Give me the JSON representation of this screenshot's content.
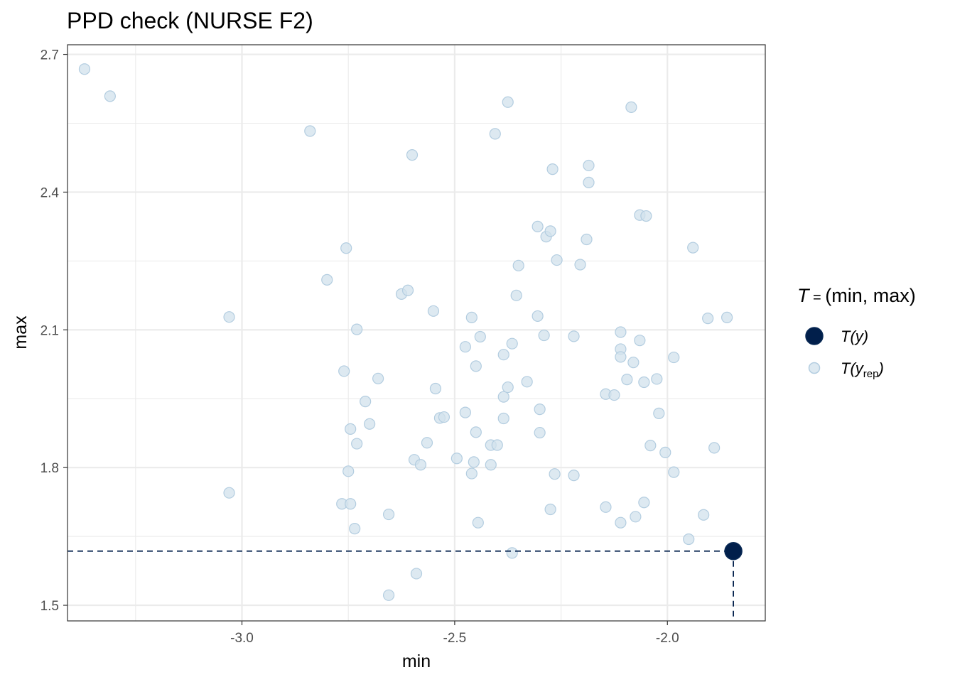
{
  "chart_data": {
    "type": "scatter",
    "title": "PPD check (NURSE F2)",
    "xlabel": "min",
    "ylabel": "max",
    "xlim": [
      -3.41,
      -1.77
    ],
    "ylim": [
      1.466,
      2.721
    ],
    "x_ticks": [
      -3.0,
      -2.5,
      -2.0
    ],
    "x_tick_labels": [
      "-3.0",
      "-2.5",
      "-2.0"
    ],
    "y_ticks": [
      1.5,
      1.8,
      2.1,
      2.4,
      2.7
    ],
    "y_tick_labels": [
      "1.5",
      "1.8",
      "2.1",
      "2.4",
      "2.7"
    ],
    "grid": true,
    "legend": {
      "position": "right",
      "title_prefix": "T",
      "title_eq": " = ",
      "title_expr": "(min, max)",
      "items": [
        {
          "label_main": "T(y)",
          "label_sub": "",
          "label_end": "",
          "color": "#011f4b",
          "marker": "large-filled"
        },
        {
          "label_main": "T(y",
          "label_sub": "rep",
          "label_end": ")",
          "color": "#c8d7e5",
          "marker": "small-translucent"
        }
      ]
    },
    "observed": {
      "x": -1.845,
      "y": 1.618,
      "color": "#011f4b"
    },
    "replicated_color": "#d1e1ec",
    "replicated_stroke": "#b3cde0",
    "replicated": [
      [
        -3.37,
        2.668
      ],
      [
        -3.31,
        2.609
      ],
      [
        -3.03,
        2.128
      ],
      [
        -3.03,
        1.745
      ],
      [
        -2.84,
        2.533
      ],
      [
        -2.8,
        2.209
      ],
      [
        -2.755,
        2.278
      ],
      [
        -2.76,
        2.01
      ],
      [
        -2.73,
        2.101
      ],
      [
        -2.75,
        1.792
      ],
      [
        -2.745,
        1.884
      ],
      [
        -2.73,
        1.852
      ],
      [
        -2.765,
        1.721
      ],
      [
        -2.745,
        1.721
      ],
      [
        -2.735,
        1.667
      ],
      [
        -2.71,
        1.944
      ],
      [
        -2.7,
        1.895
      ],
      [
        -2.68,
        1.994
      ],
      [
        -2.655,
        1.698
      ],
      [
        -2.655,
        1.522
      ],
      [
        -2.625,
        2.178
      ],
      [
        -2.61,
        2.186
      ],
      [
        -2.6,
        2.481
      ],
      [
        -2.595,
        1.817
      ],
      [
        -2.59,
        1.569
      ],
      [
        -2.58,
        1.806
      ],
      [
        -2.565,
        1.854
      ],
      [
        -2.55,
        2.141
      ],
      [
        -2.545,
        1.972
      ],
      [
        -2.535,
        1.908
      ],
      [
        -2.525,
        1.91
      ],
      [
        -2.495,
        1.82
      ],
      [
        -2.475,
        2.063
      ],
      [
        -2.475,
        1.92
      ],
      [
        -2.46,
        2.127
      ],
      [
        -2.455,
        1.812
      ],
      [
        -2.46,
        1.787
      ],
      [
        -2.45,
        1.877
      ],
      [
        -2.45,
        2.021
      ],
      [
        -2.445,
        1.68
      ],
      [
        -2.44,
        2.085
      ],
      [
        -2.415,
        1.849
      ],
      [
        -2.415,
        1.806
      ],
      [
        -2.405,
        2.527
      ],
      [
        -2.4,
        1.849
      ],
      [
        -2.385,
        2.046
      ],
      [
        -2.385,
        1.954
      ],
      [
        -2.385,
        1.907
      ],
      [
        -2.375,
        2.596
      ],
      [
        -2.375,
        1.975
      ],
      [
        -2.365,
        2.07
      ],
      [
        -2.365,
        1.614
      ],
      [
        -2.355,
        2.175
      ],
      [
        -2.35,
        2.24
      ],
      [
        -2.33,
        1.987
      ],
      [
        -2.305,
        2.325
      ],
      [
        -2.305,
        2.13
      ],
      [
        -2.3,
        1.927
      ],
      [
        -2.3,
        1.876
      ],
      [
        -2.29,
        2.088
      ],
      [
        -2.285,
        2.303
      ],
      [
        -2.275,
        2.315
      ],
      [
        -2.27,
        2.45
      ],
      [
        -2.275,
        1.709
      ],
      [
        -2.265,
        1.786
      ],
      [
        -2.26,
        2.252
      ],
      [
        -2.22,
        2.086
      ],
      [
        -2.22,
        1.783
      ],
      [
        -2.205,
        2.242
      ],
      [
        -2.19,
        2.297
      ],
      [
        -2.185,
        2.458
      ],
      [
        -2.185,
        2.421
      ],
      [
        -2.145,
        1.96
      ],
      [
        -2.145,
        1.714
      ],
      [
        -2.125,
        1.958
      ],
      [
        -2.11,
        2.095
      ],
      [
        -2.11,
        2.058
      ],
      [
        -2.11,
        2.041
      ],
      [
        -2.11,
        1.68
      ],
      [
        -2.095,
        1.992
      ],
      [
        -2.085,
        2.585
      ],
      [
        -2.08,
        2.029
      ],
      [
        -2.075,
        1.693
      ],
      [
        -2.065,
        2.35
      ],
      [
        -2.065,
        2.077
      ],
      [
        -2.05,
        2.348
      ],
      [
        -2.055,
        1.986
      ],
      [
        -2.055,
        1.724
      ],
      [
        -2.04,
        1.848
      ],
      [
        -2.025,
        1.993
      ],
      [
        -2.02,
        1.918
      ],
      [
        -2.005,
        1.833
      ],
      [
        -1.985,
        2.04
      ],
      [
        -1.985,
        1.79
      ],
      [
        -1.95,
        1.644
      ],
      [
        -1.94,
        2.279
      ],
      [
        -1.915,
        1.697
      ],
      [
        -1.905,
        2.125
      ],
      [
        -1.89,
        1.843
      ],
      [
        -1.86,
        2.127
      ]
    ]
  }
}
